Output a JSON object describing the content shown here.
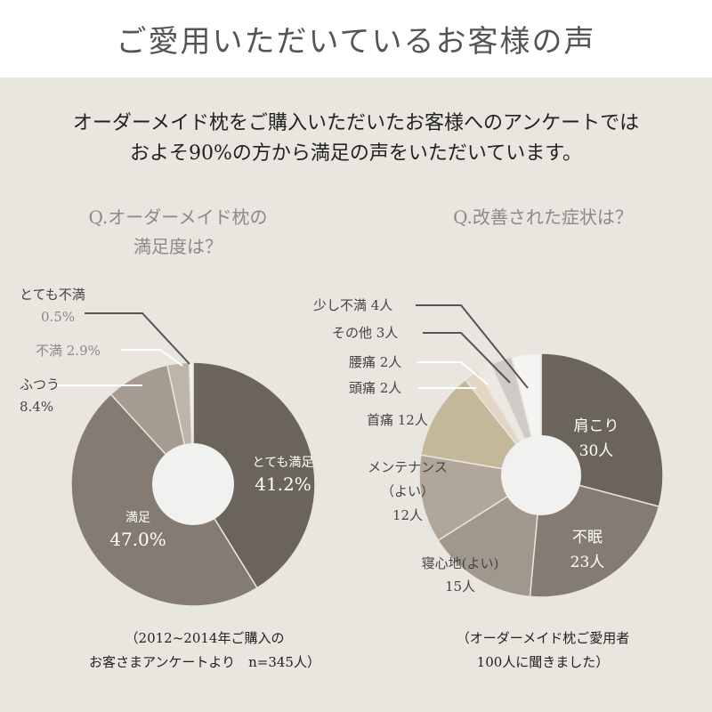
{
  "header": {
    "title": "ご愛用いただいているお客様の声"
  },
  "intro": {
    "line1": "オーダーメイド枕をご購入いただいたお客様へのアンケートでは",
    "line2": "およそ90%の方から満足の声をいただいています。"
  },
  "left": {
    "question_line1": "Q.オーダーメイド枕の",
    "question_line2": "満足度は？",
    "note_line1": "（2012~2014年ご購入の",
    "note_line2": "お客さまアンケートより　n=345人）",
    "labels": {
      "fumanzoku_name": "とても不満",
      "fumanzoku_value": "0.5%",
      "fuman": "不満 2.9%",
      "futsuu_name": "ふつう",
      "futsuu_value": "8.4%",
      "totemo_name": "とても満足",
      "totemo_value": "41.2%",
      "manzoku_name": "満足",
      "manzoku_value": "47.0%"
    }
  },
  "right": {
    "question": "Q.改善された症状は？",
    "note_line1": "（オーダーメイド枕ご愛用者",
    "note_line2": "100人に聞きました）",
    "labels": {
      "katakori_name": "肩こり",
      "katakori_value": "30人",
      "fumin_name": "不眠",
      "fumin_value": "23人",
      "neshinchi_name": "寝心地(よい)",
      "neshinchi_value": "15人",
      "maint_name": "メンテナンス",
      "maint_sub": "（よい）",
      "maint_value": "12人",
      "kubi": "首痛 12人",
      "zutsuu": "頭痛 2人",
      "youtsuu": "腰痛 2人",
      "sonota": "その他 3人",
      "sukoshi": "少し不満 4人"
    }
  },
  "colors": {
    "dark": "#6b645c",
    "mid": "#847b72",
    "light": "#a59b90",
    "tan": "#c4b89b",
    "cream": "#e1d7c4",
    "pale": "#d2cdc7",
    "white": "#f5f4f2",
    "center": "#f1f2f0",
    "bg": "#e9e5df"
  },
  "chart_data": [
    {
      "type": "pie",
      "title": "Q.オーダーメイド枕の満足度は？",
      "unit": "%",
      "categories": [
        "とても満足",
        "満足",
        "ふつう",
        "不満",
        "とても不満"
      ],
      "values": [
        41.2,
        47.0,
        8.4,
        2.9,
        0.5
      ],
      "colors": [
        "#6b645c",
        "#847b72",
        "#a59b90",
        "#bdb4aa",
        "#f5f4f2"
      ]
    },
    {
      "type": "pie",
      "title": "Q.改善された症状は？",
      "unit": "人",
      "categories": [
        "肩こり",
        "不眠",
        "寝心地(よい)",
        "メンテナンス(よい)",
        "首痛",
        "頭痛",
        "腰痛",
        "その他",
        "少し不満"
      ],
      "values": [
        30,
        23,
        15,
        12,
        12,
        2,
        2,
        3,
        4
      ],
      "colors": [
        "#6b645c",
        "#847b72",
        "#a0978d",
        "#b0a69a",
        "#c4b89b",
        "#e1d7c4",
        "#ece8e2",
        "#cfcac5",
        "#f5f4f2"
      ]
    }
  ]
}
